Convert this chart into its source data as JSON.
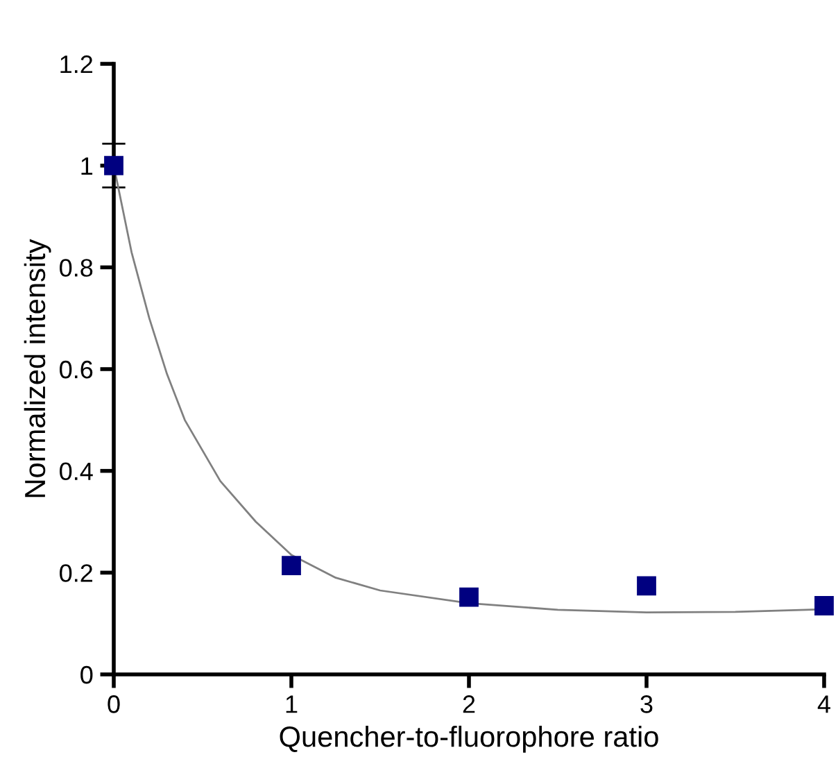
{
  "chart_data": {
    "type": "line",
    "xlabel": "Quencher-to-fluorophore ratio",
    "ylabel": "Normalized intensity",
    "xlim": [
      0,
      4
    ],
    "xticks": [
      0,
      1,
      2,
      3,
      4
    ],
    "ylim": [
      0,
      1.2
    ],
    "yticks": [
      0,
      0.2,
      0.4,
      0.6,
      0.8,
      1,
      1.2
    ],
    "grid": false,
    "legend": false,
    "series": [
      {
        "type": "scatter",
        "color": "#000080",
        "marker": "square",
        "x": [
          0,
          1,
          2,
          3,
          4
        ],
        "values": [
          1.0,
          0.214,
          0.152,
          0.174,
          0.135
        ],
        "errors": [
          0.043,
          null,
          null,
          null,
          null
        ]
      },
      {
        "color": "#808080",
        "marker": "none",
        "line_style": "solid",
        "x": [
          0,
          0.1,
          0.2,
          0.3,
          0.4,
          0.5,
          0.6,
          0.8,
          1,
          1.25,
          1.5,
          2,
          2.5,
          3,
          3.5,
          4
        ],
        "values": [
          1.0,
          0.83,
          0.7,
          0.59,
          0.5,
          0.44,
          0.38,
          0.3,
          0.235,
          0.19,
          0.165,
          0.14,
          0.127,
          0.122,
          0.123,
          0.128
        ]
      }
    ]
  }
}
